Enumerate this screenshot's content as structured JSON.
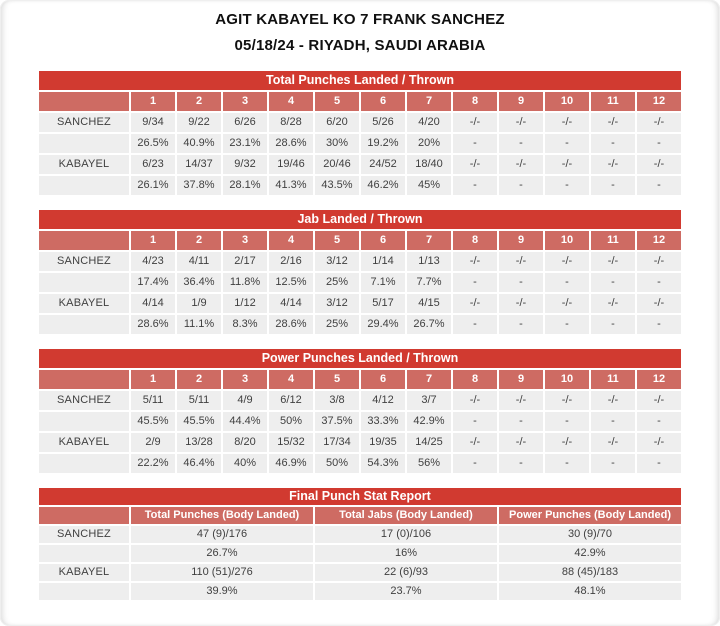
{
  "header": {
    "title": "AGIT KABAYEL KO 7 FRANK SANCHEZ",
    "subtitle": "05/18/24 - RIYADH, SAUDI ARABIA"
  },
  "colors": {
    "header_red": "#d13a30",
    "rounds_red": "#ce6b63",
    "cell_bg": "#eeeeee",
    "text_dark": "#404040"
  },
  "rounds": [
    "1",
    "2",
    "3",
    "4",
    "5",
    "6",
    "7",
    "8",
    "9",
    "10",
    "11",
    "12"
  ],
  "round_tables": [
    {
      "title": "Total Punches Landed / Thrown",
      "rows": [
        {
          "fighter": "SANCHEZ",
          "values": [
            "9/34",
            "9/22",
            "6/26",
            "8/28",
            "6/20",
            "5/26",
            "4/20",
            "-/-",
            "-/-",
            "-/-",
            "-/-",
            "-/-"
          ],
          "percents": [
            "26.5%",
            "40.9%",
            "23.1%",
            "28.6%",
            "30%",
            "19.2%",
            "20%",
            "-",
            "-",
            "-",
            "-",
            "-"
          ]
        },
        {
          "fighter": "KABAYEL",
          "values": [
            "6/23",
            "14/37",
            "9/32",
            "19/46",
            "20/46",
            "24/52",
            "18/40",
            "-/-",
            "-/-",
            "-/-",
            "-/-",
            "-/-"
          ],
          "percents": [
            "26.1%",
            "37.8%",
            "28.1%",
            "41.3%",
            "43.5%",
            "46.2%",
            "45%",
            "-",
            "-",
            "-",
            "-",
            "-"
          ]
        }
      ]
    },
    {
      "title": "Jab Landed / Thrown",
      "rows": [
        {
          "fighter": "SANCHEZ",
          "values": [
            "4/23",
            "4/11",
            "2/17",
            "2/16",
            "3/12",
            "1/14",
            "1/13",
            "-/-",
            "-/-",
            "-/-",
            "-/-",
            "-/-"
          ],
          "percents": [
            "17.4%",
            "36.4%",
            "11.8%",
            "12.5%",
            "25%",
            "7.1%",
            "7.7%",
            "-",
            "-",
            "-",
            "-",
            "-"
          ]
        },
        {
          "fighter": "KABAYEL",
          "values": [
            "4/14",
            "1/9",
            "1/12",
            "4/14",
            "3/12",
            "5/17",
            "4/15",
            "-/-",
            "-/-",
            "-/-",
            "-/-",
            "-/-"
          ],
          "percents": [
            "28.6%",
            "11.1%",
            "8.3%",
            "28.6%",
            "25%",
            "29.4%",
            "26.7%",
            "-",
            "-",
            "-",
            "-",
            "-"
          ]
        }
      ]
    },
    {
      "title": "Power Punches Landed / Thrown",
      "rows": [
        {
          "fighter": "SANCHEZ",
          "values": [
            "5/11",
            "5/11",
            "4/9",
            "6/12",
            "3/8",
            "4/12",
            "3/7",
            "-/-",
            "-/-",
            "-/-",
            "-/-",
            "-/-"
          ],
          "percents": [
            "45.5%",
            "45.5%",
            "44.4%",
            "50%",
            "37.5%",
            "33.3%",
            "42.9%",
            "-",
            "-",
            "-",
            "-",
            "-"
          ]
        },
        {
          "fighter": "KABAYEL",
          "values": [
            "2/9",
            "13/28",
            "8/20",
            "15/32",
            "17/34",
            "19/35",
            "14/25",
            "-/-",
            "-/-",
            "-/-",
            "-/-",
            "-/-"
          ],
          "percents": [
            "22.2%",
            "46.4%",
            "40%",
            "46.9%",
            "50%",
            "54.3%",
            "56%",
            "-",
            "-",
            "-",
            "-",
            "-"
          ]
        }
      ]
    }
  ],
  "final_table": {
    "title": "Final Punch Stat Report",
    "columns": [
      "Total Punches (Body Landed)",
      "Total Jabs (Body Landed)",
      "Power Punches (Body Landed)"
    ],
    "rows": [
      {
        "fighter": "SANCHEZ",
        "values": [
          "47 (9)/176",
          "17 (0)/106",
          "30 (9)/70"
        ],
        "percents": [
          "26.7%",
          "16%",
          "42.9%"
        ]
      },
      {
        "fighter": "KABAYEL",
        "values": [
          "110 (51)/276",
          "22 (6)/93",
          "88 (45)/183"
        ],
        "percents": [
          "39.9%",
          "23.7%",
          "48.1%"
        ]
      }
    ]
  }
}
